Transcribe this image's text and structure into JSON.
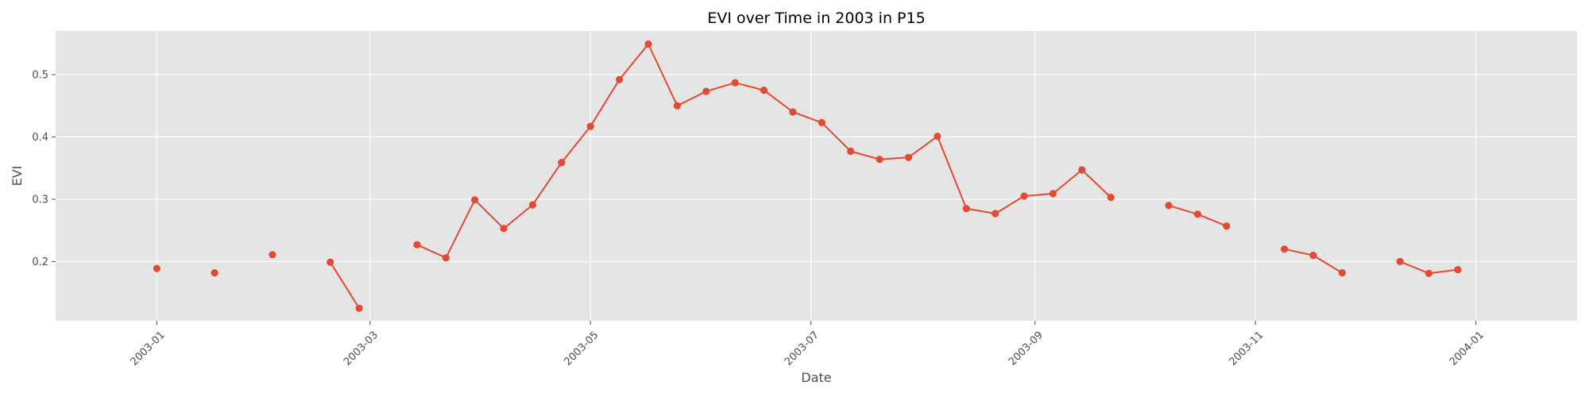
{
  "chart_data": {
    "type": "line",
    "title": "EVI over Time in 2003 in P15",
    "xlabel": "Date",
    "ylabel": "EVI",
    "xlim": [
      "2002-12-04",
      "2004-01-29"
    ],
    "ylim": [
      0.105,
      0.57
    ],
    "x_ticks": [
      "2003-01",
      "2003-03",
      "2003-05",
      "2003-07",
      "2003-09",
      "2003-11",
      "2004-01"
    ],
    "y_ticks": [
      "0.2",
      "0.3",
      "0.4",
      "0.5"
    ],
    "grid": true,
    "colors": {
      "background": "#e5e5e5",
      "grid": "#ffffff",
      "series": "#e24a33"
    },
    "series": [
      {
        "marker": "circle",
        "points": [
          {
            "x": "2003-01-01",
            "y": 0.189
          },
          {
            "x": "2003-01-17",
            "y": 0.182
          },
          {
            "x": "2003-02-02",
            "y": 0.211
          },
          {
            "x": "2003-02-18",
            "y": 0.199
          },
          {
            "x": "2003-02-26",
            "y": 0.125
          },
          {
            "x": "2003-03-14",
            "y": 0.227
          },
          {
            "x": "2003-03-22",
            "y": 0.206
          },
          {
            "x": "2003-03-30",
            "y": 0.299
          },
          {
            "x": "2003-04-07",
            "y": 0.253
          },
          {
            "x": "2003-04-15",
            "y": 0.291
          },
          {
            "x": "2003-04-23",
            "y": 0.359
          },
          {
            "x": "2003-05-01",
            "y": 0.417
          },
          {
            "x": "2003-05-09",
            "y": 0.492
          },
          {
            "x": "2003-05-17",
            "y": 0.549
          },
          {
            "x": "2003-05-25",
            "y": 0.45
          },
          {
            "x": "2003-06-02",
            "y": 0.473
          },
          {
            "x": "2003-06-10",
            "y": 0.487
          },
          {
            "x": "2003-06-18",
            "y": 0.475
          },
          {
            "x": "2003-06-26",
            "y": 0.44
          },
          {
            "x": "2003-07-04",
            "y": 0.423
          },
          {
            "x": "2003-07-12",
            "y": 0.377
          },
          {
            "x": "2003-07-20",
            "y": 0.364
          },
          {
            "x": "2003-07-28",
            "y": 0.367
          },
          {
            "x": "2003-08-05",
            "y": 0.401
          },
          {
            "x": "2003-08-13",
            "y": 0.285
          },
          {
            "x": "2003-08-21",
            "y": 0.277
          },
          {
            "x": "2003-08-29",
            "y": 0.305
          },
          {
            "x": "2003-09-06",
            "y": 0.309
          },
          {
            "x": "2003-09-14",
            "y": 0.347
          },
          {
            "x": "2003-09-22",
            "y": 0.303
          },
          {
            "x": "2003-10-08",
            "y": 0.29
          },
          {
            "x": "2003-10-16",
            "y": 0.276
          },
          {
            "x": "2003-10-24",
            "y": 0.257
          },
          {
            "x": "2003-11-09",
            "y": 0.22
          },
          {
            "x": "2003-11-17",
            "y": 0.21
          },
          {
            "x": "2003-11-25",
            "y": 0.182
          },
          {
            "x": "2003-12-11",
            "y": 0.2
          },
          {
            "x": "2003-12-19",
            "y": 0.181
          },
          {
            "x": "2003-12-27",
            "y": 0.187
          }
        ]
      }
    ]
  }
}
